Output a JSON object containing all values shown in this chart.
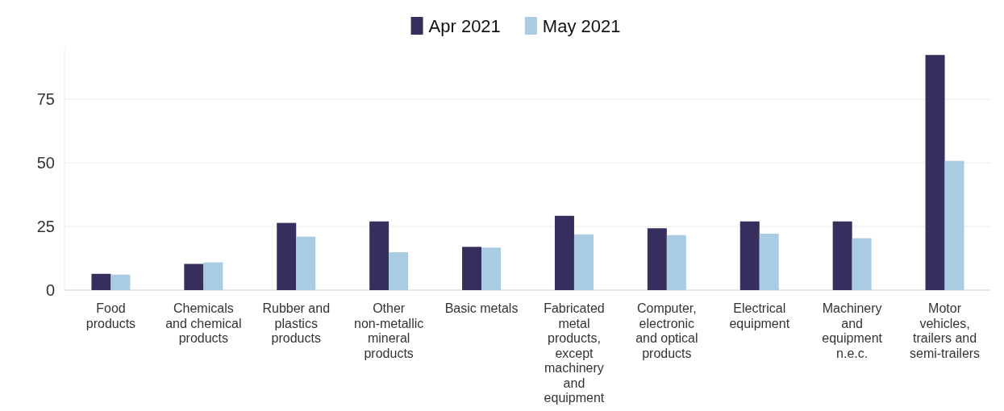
{
  "chart_data": {
    "type": "bar",
    "categories": [
      "Food products",
      "Chemicals and chemical products",
      "Rubber and plastics products",
      "Other non-metallic mineral products",
      "Basic metals",
      "Fabricated metal products, except machinery and equipment",
      "Computer, electronic and optical products",
      "Electrical equipment",
      "Machinery and equipment n.e.c.",
      "Motor vehicles, trailers and semi-trailers"
    ],
    "series": [
      {
        "name": "Apr 2021",
        "color": "#372e5e",
        "values": [
          6.4,
          10.3,
          26.4,
          27.0,
          17.0,
          29.2,
          24.3,
          27.0,
          27.0,
          92.4
        ]
      },
      {
        "name": "May 2021",
        "color": "#a9cce3",
        "values": [
          6.1,
          10.9,
          21.0,
          14.9,
          16.7,
          21.9,
          21.6,
          22.2,
          20.4,
          50.8
        ]
      }
    ],
    "ylim": [
      0,
      95
    ],
    "yticks": [
      0,
      25,
      50,
      75
    ],
    "grid": "y",
    "legend": "top"
  }
}
